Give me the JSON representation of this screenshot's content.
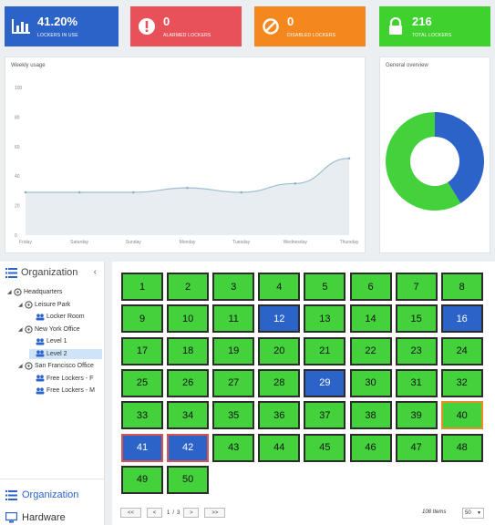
{
  "stats": [
    {
      "value": "41.20%",
      "label": "LOCKERS IN USE",
      "icon": "bar-chart-icon",
      "color": "#2c63c8"
    },
    {
      "value": "0",
      "label": "ALARMED LOCKERS",
      "icon": "alert-icon",
      "color": "#e9515a"
    },
    {
      "value": "0",
      "label": "DISABLED LOCKERS",
      "icon": "ban-icon",
      "color": "#f5871f"
    },
    {
      "value": "216",
      "label": "TOTAL LOCKERS",
      "icon": "lock-icon",
      "color": "#3fd22f"
    }
  ],
  "weekly_usage": {
    "title": "Weekly usage"
  },
  "general_overview": {
    "title": "General overview"
  },
  "chart_data": [
    {
      "type": "area",
      "title": "Weekly usage",
      "categories": [
        "Friday",
        "Saturday",
        "Sunday",
        "Monday",
        "Tuesday",
        "Wednesday",
        "Thursday"
      ],
      "series": [
        {
          "values": [
            29,
            29,
            29,
            32,
            29,
            35,
            52
          ]
        }
      ],
      "yticks": [
        0,
        20,
        40,
        60,
        80,
        100
      ],
      "ylim": [
        0,
        100
      ],
      "colors": {
        "line": "#9dbfcf",
        "fill": "#e7edf0"
      }
    },
    {
      "type": "pie",
      "title": "General overview",
      "slices": [
        {
          "value": 41.2,
          "color": "#2c63c8"
        },
        {
          "value": 58.8,
          "color": "#43d23c"
        }
      ]
    }
  ],
  "organization": {
    "title": "Organization",
    "collapse": "‹",
    "tree": [
      {
        "label": "Headquarters",
        "toggle": "◢",
        "icon": "building-icon"
      },
      {
        "label": "Leisure Park",
        "toggle": "◢",
        "icon": "building-icon"
      },
      {
        "label": "Locker Room",
        "toggle": "",
        "icon": "group-icon"
      },
      {
        "label": "New York Office",
        "toggle": "◢",
        "icon": "building-icon"
      },
      {
        "label": "Level 1",
        "toggle": "",
        "icon": "group-icon"
      },
      {
        "label": "Level 2",
        "toggle": "",
        "icon": "group-icon",
        "selected": true
      },
      {
        "label": "San Francisco Office",
        "toggle": "◢",
        "icon": "building-icon"
      },
      {
        "label": "Free Lockers - F",
        "toggle": "",
        "icon": "group-icon"
      },
      {
        "label": "Free Lockers - M",
        "toggle": "",
        "icon": "group-icon"
      }
    ],
    "nav": [
      {
        "label": "Organization",
        "icon": "list-icon",
        "active": true
      },
      {
        "label": "Hardware",
        "icon": "hardware-icon",
        "active": false
      }
    ]
  },
  "lockers": {
    "blue": [
      12,
      16,
      29,
      41,
      42
    ],
    "red_border": [
      41,
      42
    ],
    "orange_border": [
      40
    ],
    "count": 50,
    "colors": {
      "free": "#43d23c",
      "in_use": "#2c63c8"
    }
  },
  "pager": {
    "first": "<<",
    "prev": "<",
    "page": "1",
    "sep": "/",
    "total": "3",
    "next": ">",
    "last": ">>",
    "items": "108 Items",
    "page_size": "50"
  }
}
